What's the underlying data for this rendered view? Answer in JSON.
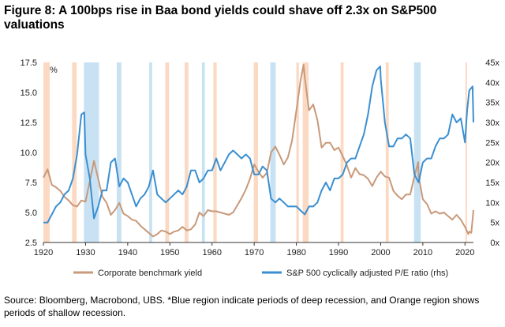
{
  "title": "Figure 8: A 100bps rise in Baa bond yields could shave off 2.3x on S&P500 valuations",
  "source": "Source: Bloomberg, Macrobond, UBS. *Blue region indicate periods of deep recession, and Orange region shows periods of shallow recession.",
  "colors": {
    "yield": "#c8997a",
    "pe": "#3a8fd1",
    "deep": "#c9e2f3",
    "shallow": "#fbd9c3",
    "axis": "#333333"
  },
  "chart_data": {
    "type": "line",
    "xlim": [
      1920,
      2022
    ],
    "x_ticks": [
      "1920",
      "1930",
      "1940",
      "1950",
      "1960",
      "1970",
      "1980",
      "1990",
      "2000",
      "2010",
      "2020"
    ],
    "y_left_lim": [
      2.5,
      17.5
    ],
    "y_left_ticks": [
      "2.5",
      "5.0",
      "7.5",
      "10.0",
      "12.5",
      "15.0",
      "17.5"
    ],
    "y_left_unit": "%",
    "y_right_lim": [
      0,
      45
    ],
    "y_right_ticks": [
      "0x",
      "5x",
      "10x",
      "15x",
      "20x",
      "25x",
      "30x",
      "35x",
      "40x",
      "45x"
    ],
    "grid": false,
    "legend_placement": "bottom",
    "series": [
      {
        "name": "Corporate benchmark yield",
        "axis": "left",
        "color": "#c8997a",
        "points": [
          [
            1920,
            7.9
          ],
          [
            1921,
            8.6
          ],
          [
            1922,
            7.3
          ],
          [
            1923,
            7.1
          ],
          [
            1924,
            6.8
          ],
          [
            1925,
            6.3
          ],
          [
            1926,
            6.0
          ],
          [
            1927,
            5.6
          ],
          [
            1928,
            5.5
          ],
          [
            1929,
            6.0
          ],
          [
            1930,
            5.9
          ],
          [
            1931,
            7.6
          ],
          [
            1932,
            9.3
          ],
          [
            1933,
            7.8
          ],
          [
            1934,
            6.3
          ],
          [
            1935,
            5.8
          ],
          [
            1936,
            4.8
          ],
          [
            1937,
            5.2
          ],
          [
            1938,
            5.8
          ],
          [
            1939,
            4.9
          ],
          [
            1940,
            4.7
          ],
          [
            1941,
            4.4
          ],
          [
            1942,
            4.3
          ],
          [
            1943,
            3.9
          ],
          [
            1944,
            3.6
          ],
          [
            1945,
            3.3
          ],
          [
            1946,
            3.0
          ],
          [
            1947,
            3.2
          ],
          [
            1948,
            3.5
          ],
          [
            1949,
            3.4
          ],
          [
            1950,
            3.2
          ],
          [
            1951,
            3.4
          ],
          [
            1952,
            3.5
          ],
          [
            1953,
            3.8
          ],
          [
            1954,
            3.5
          ],
          [
            1955,
            3.6
          ],
          [
            1956,
            4.0
          ],
          [
            1957,
            5.0
          ],
          [
            1958,
            4.7
          ],
          [
            1959,
            5.2
          ],
          [
            1960,
            5.1
          ],
          [
            1961,
            5.1
          ],
          [
            1962,
            5.0
          ],
          [
            1963,
            4.9
          ],
          [
            1964,
            4.8
          ],
          [
            1965,
            5.0
          ],
          [
            1966,
            5.6
          ],
          [
            1967,
            6.2
          ],
          [
            1968,
            6.9
          ],
          [
            1969,
            7.8
          ],
          [
            1970,
            9.0
          ],
          [
            1971,
            8.4
          ],
          [
            1972,
            7.9
          ],
          [
            1973,
            8.3
          ],
          [
            1974,
            10.0
          ],
          [
            1975,
            10.5
          ],
          [
            1976,
            9.8
          ],
          [
            1977,
            9.0
          ],
          [
            1978,
            9.6
          ],
          [
            1979,
            11.0
          ],
          [
            1980,
            13.5
          ],
          [
            1981,
            16.0
          ],
          [
            1981.7,
            17.3
          ],
          [
            1982,
            16.2
          ],
          [
            1983,
            13.5
          ],
          [
            1984,
            14.0
          ],
          [
            1985,
            12.7
          ],
          [
            1986,
            10.4
          ],
          [
            1987,
            10.8
          ],
          [
            1988,
            10.8
          ],
          [
            1989,
            10.2
          ],
          [
            1990,
            10.4
          ],
          [
            1991,
            9.7
          ],
          [
            1992,
            8.9
          ],
          [
            1993,
            7.9
          ],
          [
            1994,
            8.7
          ],
          [
            1995,
            8.2
          ],
          [
            1996,
            8.1
          ],
          [
            1997,
            7.8
          ],
          [
            1998,
            7.2
          ],
          [
            1999,
            7.9
          ],
          [
            2000,
            8.4
          ],
          [
            2001,
            8.0
          ],
          [
            2002,
            7.9
          ],
          [
            2003,
            6.8
          ],
          [
            2004,
            6.4
          ],
          [
            2005,
            6.1
          ],
          [
            2006,
            6.5
          ],
          [
            2007,
            6.5
          ],
          [
            2008,
            8.0
          ],
          [
            2008.9,
            9.2
          ],
          [
            2009,
            8.0
          ],
          [
            2010,
            6.1
          ],
          [
            2011,
            5.7
          ],
          [
            2012,
            4.9
          ],
          [
            2013,
            5.1
          ],
          [
            2014,
            4.9
          ],
          [
            2015,
            5.0
          ],
          [
            2016,
            4.7
          ],
          [
            2017,
            4.4
          ],
          [
            2018,
            4.8
          ],
          [
            2019,
            4.4
          ],
          [
            2020,
            3.8
          ],
          [
            2020.8,
            3.2
          ],
          [
            2021,
            3.4
          ],
          [
            2021.5,
            3.3
          ],
          [
            2022,
            5.2
          ]
        ]
      },
      {
        "name": "S&P 500 cyclically adjusted P/E ratio (rhs)",
        "axis": "right",
        "color": "#3a8fd1",
        "points": [
          [
            1920,
            5
          ],
          [
            1921,
            5
          ],
          [
            1922,
            7
          ],
          [
            1923,
            9
          ],
          [
            1924,
            10
          ],
          [
            1925,
            12
          ],
          [
            1926,
            13
          ],
          [
            1927,
            16
          ],
          [
            1928,
            22
          ],
          [
            1929,
            32
          ],
          [
            1929.7,
            32.5
          ],
          [
            1930,
            22
          ],
          [
            1931,
            16
          ],
          [
            1932,
            6
          ],
          [
            1933,
            9
          ],
          [
            1934,
            13
          ],
          [
            1935,
            13
          ],
          [
            1936,
            20
          ],
          [
            1937,
            21
          ],
          [
            1938,
            14
          ],
          [
            1939,
            16
          ],
          [
            1940,
            15
          ],
          [
            1941,
            12
          ],
          [
            1942,
            9
          ],
          [
            1943,
            11
          ],
          [
            1944,
            12
          ],
          [
            1945,
            14
          ],
          [
            1946,
            18
          ],
          [
            1947,
            12
          ],
          [
            1948,
            11
          ],
          [
            1949,
            10
          ],
          [
            1950,
            11
          ],
          [
            1951,
            12
          ],
          [
            1952,
            13
          ],
          [
            1953,
            12
          ],
          [
            1954,
            14
          ],
          [
            1955,
            18
          ],
          [
            1956,
            18
          ],
          [
            1957,
            15
          ],
          [
            1958,
            16
          ],
          [
            1959,
            18
          ],
          [
            1960,
            18
          ],
          [
            1961,
            21
          ],
          [
            1962,
            18
          ],
          [
            1963,
            20
          ],
          [
            1964,
            22
          ],
          [
            1965,
            23
          ],
          [
            1966,
            22
          ],
          [
            1967,
            21
          ],
          [
            1968,
            22
          ],
          [
            1969,
            21
          ],
          [
            1970,
            17
          ],
          [
            1971,
            17
          ],
          [
            1972,
            19
          ],
          [
            1973,
            18
          ],
          [
            1974,
            11
          ],
          [
            1975,
            10
          ],
          [
            1976,
            11
          ],
          [
            1977,
            10
          ],
          [
            1978,
            9
          ],
          [
            1979,
            9
          ],
          [
            1980,
            9
          ],
          [
            1981,
            8
          ],
          [
            1982,
            7
          ],
          [
            1983,
            9
          ],
          [
            1984,
            9
          ],
          [
            1985,
            10
          ],
          [
            1986,
            13
          ],
          [
            1987,
            15
          ],
          [
            1988,
            13
          ],
          [
            1989,
            16
          ],
          [
            1990,
            16
          ],
          [
            1991,
            17
          ],
          [
            1992,
            20
          ],
          [
            1993,
            21
          ],
          [
            1994,
            21
          ],
          [
            1995,
            24
          ],
          [
            1996,
            27
          ],
          [
            1997,
            32
          ],
          [
            1998,
            39
          ],
          [
            1999,
            43
          ],
          [
            1999.9,
            44
          ],
          [
            2000,
            41
          ],
          [
            2001,
            30
          ],
          [
            2002,
            24
          ],
          [
            2003,
            24
          ],
          [
            2004,
            26
          ],
          [
            2005,
            26
          ],
          [
            2006,
            27
          ],
          [
            2007,
            26
          ],
          [
            2008,
            17
          ],
          [
            2009,
            15
          ],
          [
            2010,
            20
          ],
          [
            2011,
            21
          ],
          [
            2012,
            21
          ],
          [
            2013,
            24
          ],
          [
            2014,
            26
          ],
          [
            2015,
            26
          ],
          [
            2016,
            27
          ],
          [
            2017,
            32
          ],
          [
            2018,
            30
          ],
          [
            2019,
            31
          ],
          [
            2020,
            25
          ],
          [
            2020.5,
            33
          ],
          [
            2021,
            38
          ],
          [
            2021.8,
            39
          ],
          [
            2022,
            30
          ]
        ]
      }
    ],
    "deep_recessions": [
      [
        1929.6,
        1933.2
      ],
      [
        1937.4,
        1938.5
      ],
      [
        1945.1,
        1945.8
      ],
      [
        1957.6,
        1958.3
      ],
      [
        1973.8,
        1975.1
      ],
      [
        2007.9,
        2009.5
      ]
    ],
    "shallow_recessions": [
      [
        1920.0,
        1921.5
      ],
      [
        1926.8,
        1927.9
      ],
      [
        1948.9,
        1949.8
      ],
      [
        1953.5,
        1954.4
      ],
      [
        1960.3,
        1961.1
      ],
      [
        1969.9,
        1970.9
      ],
      [
        1980.0,
        1980.6
      ],
      [
        1981.5,
        1982.9
      ],
      [
        1990.5,
        1991.2
      ],
      [
        2001.2,
        2001.9
      ],
      [
        2020.1,
        2020.4
      ]
    ]
  }
}
